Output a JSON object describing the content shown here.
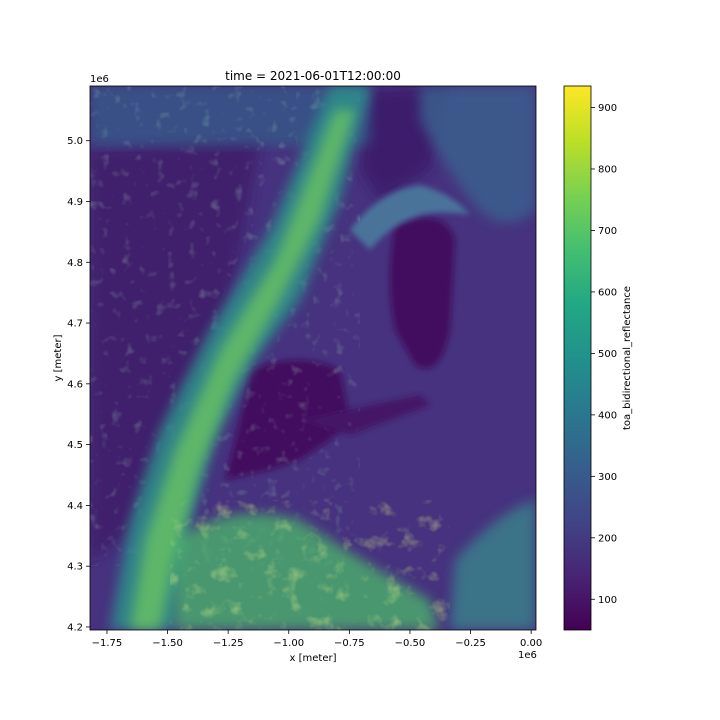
{
  "chart_data": {
    "type": "heatmap",
    "title": "time = 2021-06-01T12:00:00",
    "xlabel": "x [meter]",
    "ylabel": "y [meter]",
    "x_offset_label": "1e6",
    "y_offset_label": "1e6",
    "xlim": [
      -1.82,
      0.02
    ],
    "ylim": [
      4.195,
      5.09
    ],
    "x_ticks": [
      -1.75,
      -1.5,
      -1.25,
      -1.0,
      -0.75,
      -0.5,
      -0.25,
      0.0
    ],
    "x_tick_labels": [
      "−1.75",
      "−1.50",
      "−1.25",
      "−1.00",
      "−0.75",
      "−0.50",
      "−0.25",
      "0.00"
    ],
    "y_ticks": [
      4.2,
      4.3,
      4.4,
      4.5,
      4.6,
      4.7,
      4.8,
      4.9,
      5.0
    ],
    "y_tick_labels": [
      "4.2",
      "4.3",
      "4.4",
      "4.5",
      "4.6",
      "4.7",
      "4.8",
      "4.9",
      "5.0"
    ],
    "colorbar": {
      "label": "toa_bidirectional_reflectance",
      "colormap": "viridis",
      "range": [
        50,
        935
      ],
      "ticks": [
        100,
        200,
        300,
        400,
        500,
        600,
        700,
        800,
        900
      ],
      "tick_labels": [
        "100",
        "200",
        "300",
        "400",
        "500",
        "600",
        "700",
        "800",
        "900"
      ]
    },
    "grid": false
  }
}
